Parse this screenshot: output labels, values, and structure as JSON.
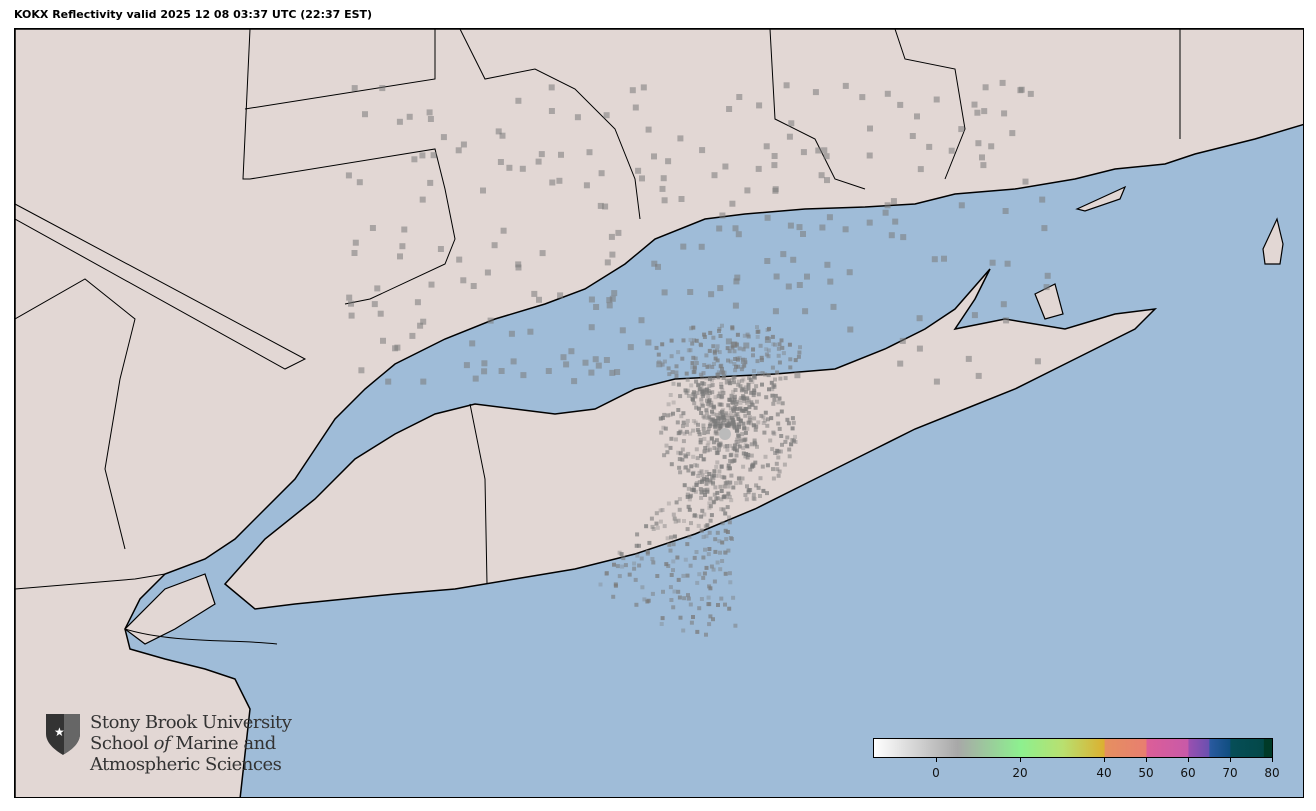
{
  "title": "KOKX Reflectivity valid 2025 12 08 03:37 UTC (22:37 EST)",
  "map": {
    "ocean_color": "#9fbcd8",
    "land_color": "#e2d7d4",
    "echo_color": "#7a7a7a",
    "radar_site": "KOKX"
  },
  "logo": {
    "line1": "Stony Brook University",
    "line2a": "School ",
    "line2b": "of",
    "line2c": " Marine and",
    "line3": "Atmospheric Sciences",
    "icon": "shield-star-icon"
  },
  "colorbar": {
    "range": [
      -15,
      80
    ],
    "ticks": [
      {
        "value": 0,
        "label": "0"
      },
      {
        "value": 20,
        "label": "20"
      },
      {
        "value": 40,
        "label": "40"
      },
      {
        "value": 50,
        "label": "50"
      },
      {
        "value": 60,
        "label": "60"
      },
      {
        "value": 70,
        "label": "70"
      },
      {
        "value": 80,
        "label": "80"
      }
    ],
    "stops": [
      {
        "value": -15,
        "color": "#ffffff"
      },
      {
        "value": 5,
        "color": "#a8a8a8"
      },
      {
        "value": 20,
        "color": "#8df08f"
      },
      {
        "value": 30,
        "color": "#b8e070"
      },
      {
        "value": 40,
        "color": "#dcb030"
      },
      {
        "value": 40.1,
        "color": "#e59060"
      },
      {
        "value": 50,
        "color": "#e87e70"
      },
      {
        "value": 50.1,
        "color": "#dc5e98"
      },
      {
        "value": 60,
        "color": "#c85aa8"
      },
      {
        "value": 60.1,
        "color": "#9a50b0"
      },
      {
        "value": 65,
        "color": "#6a50b0"
      },
      {
        "value": 65.1,
        "color": "#2a5aa0"
      },
      {
        "value": 70,
        "color": "#104e80"
      },
      {
        "value": 70.1,
        "color": "#064e58"
      },
      {
        "value": 78,
        "color": "#034848"
      },
      {
        "value": 78.1,
        "color": "#003a28"
      }
    ]
  }
}
